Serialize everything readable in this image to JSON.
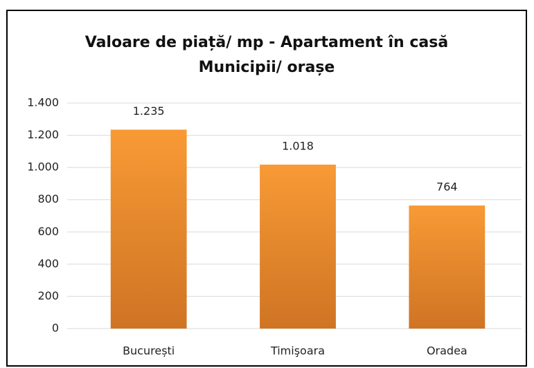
{
  "chart_data": {
    "type": "bar",
    "title": [
      "Valoare de piață/ mp - Apartament în casă",
      "Municipii/ orașe"
    ],
    "categories": [
      "București",
      "Timişoara",
      "Oradea"
    ],
    "values": [
      1235,
      1018,
      764
    ],
    "value_labels": [
      "1.235",
      "1.018",
      "764"
    ],
    "color": "#f89a35",
    "ylim": [
      0,
      1400
    ],
    "yticks": [
      0,
      200,
      400,
      600,
      800,
      {
        "value": 1000,
        "label": "1.000"
      },
      {
        "value": 1200,
        "label": "1.200"
      },
      {
        "value": 1400,
        "label": "1.400"
      }
    ],
    "grid": true
  }
}
